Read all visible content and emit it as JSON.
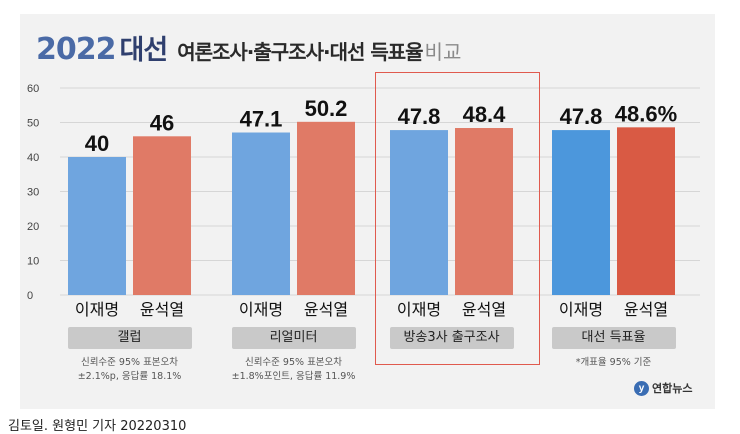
{
  "title": {
    "year": "2022",
    "main": "대선",
    "sub": "여론조사·출구조사·대선 득표율",
    "tail": "비교"
  },
  "colors": {
    "blue": "#6fa5df",
    "red": "#e07a66",
    "blue_final": "#4c97dc",
    "red_final": "#d95a44",
    "highlight": "#e05a4e"
  },
  "chart_data": {
    "type": "bar",
    "ylim": [
      0,
      60
    ],
    "yticks": [
      0,
      10,
      20,
      30,
      40,
      50,
      60
    ],
    "candidates": [
      "이재명",
      "윤석열"
    ],
    "groups": [
      {
        "source": "갤럽",
        "values": [
          40,
          46
        ],
        "labels": [
          "40",
          "46"
        ],
        "note": [
          "신뢰수준 95% 표본오차",
          "±2.1%p, 응답률 18.1%"
        ]
      },
      {
        "source": "리얼미터",
        "values": [
          47.1,
          50.2
        ],
        "labels": [
          "47.1",
          "50.2"
        ],
        "note": [
          "신뢰수준 95% 표본오차",
          "±1.8%포인트, 응답률 11.9%"
        ]
      },
      {
        "source": "방송3사 출구조사",
        "values": [
          47.8,
          48.4
        ],
        "labels": [
          "47.8",
          "48.4"
        ],
        "note": []
      },
      {
        "source": "대선 득표율",
        "values": [
          47.8,
          48.6
        ],
        "labels": [
          "47.8",
          "48.6%"
        ],
        "note": [
          "*개표율 95% 기준"
        ]
      }
    ]
  },
  "logo": {
    "mark": "y",
    "text": "연합뉴스"
  },
  "credit": "김토일. 원형민 기자  20220310"
}
